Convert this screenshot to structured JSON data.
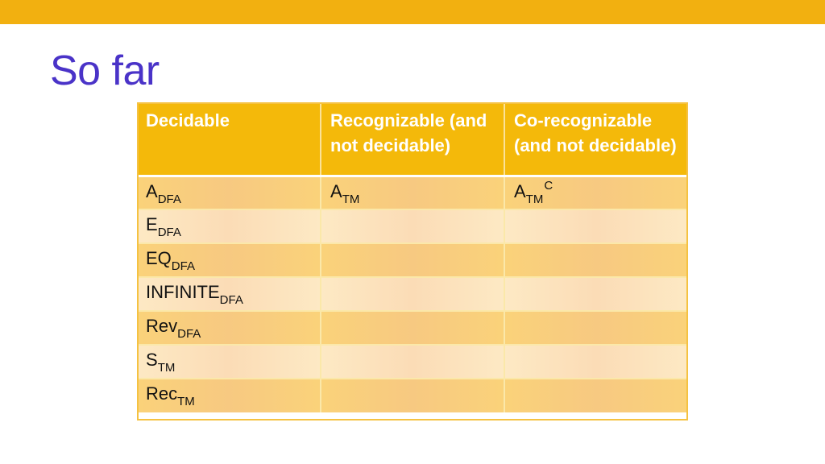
{
  "slide": {
    "title": "So far"
  },
  "table": {
    "headers": [
      "Decidable",
      "Recognizable (and not decidable)",
      "Co-recognizable (and not decidable)"
    ],
    "rows": [
      [
        {
          "base": "A",
          "sub": "DFA"
        },
        {
          "base": "A",
          "sub": "TM"
        },
        {
          "base": "A",
          "sub": "TM",
          "sup": "C"
        }
      ],
      [
        {
          "base": "E",
          "sub": "DFA"
        },
        {},
        {}
      ],
      [
        {
          "base": "EQ",
          "sub": "DFA"
        },
        {},
        {}
      ],
      [
        {
          "base": "INFINITE",
          "sub": "DFA"
        },
        {},
        {}
      ],
      [
        {
          "base": "Rev",
          "sub": "DFA"
        },
        {},
        {}
      ],
      [
        {
          "base": "S",
          "sub": "TM"
        },
        {},
        {}
      ],
      [
        {
          "base": "Rec",
          "sub": "TM"
        },
        {},
        {}
      ]
    ]
  },
  "colors": {
    "accent_bar": "#f2b010",
    "title": "#4a33c8",
    "header_fill": "#f4b90a",
    "row_dark": "#fad27a",
    "row_light": "#fde9c4"
  }
}
